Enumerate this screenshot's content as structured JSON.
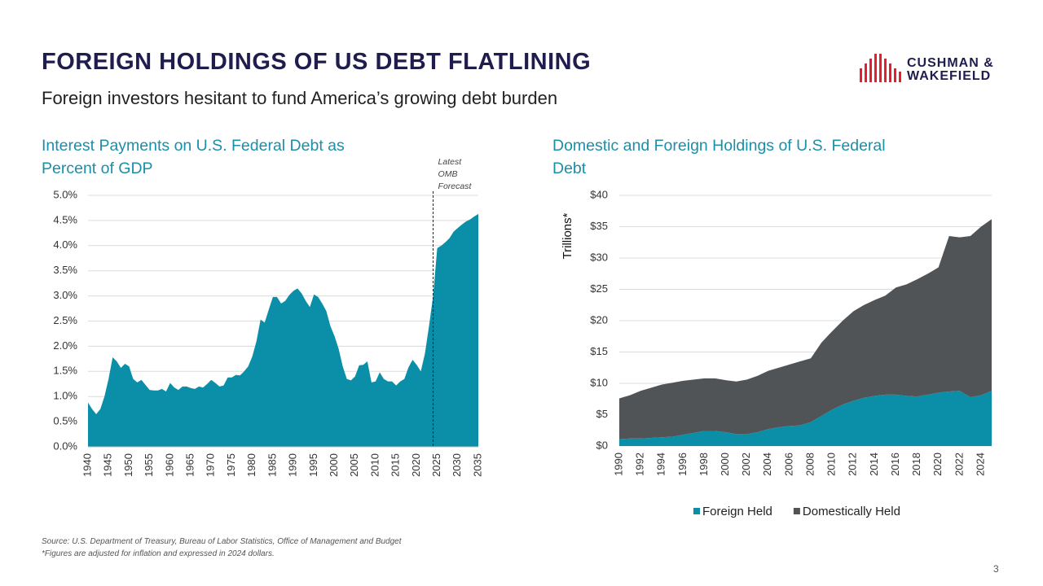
{
  "header": {
    "title": "FOREIGN HOLDINGS OF US DEBT FLATLINING",
    "subtitle": "Foreign investors hesitant to fund America’s growing debt burden",
    "logo": [
      "CUSHMAN &",
      "WAKEFIELD"
    ]
  },
  "footer": {
    "source": "Source: U.S. Department of Treasury, Bureau of Labor Statistics, Office of Management and Budget",
    "note": "*Figures are adjusted for inflation and expressed in 2024 dollars.",
    "page": "3"
  },
  "chart_data": [
    {
      "type": "area",
      "title": "Interest Payments on U.S. Federal Debt as Percent of GDP",
      "x": [
        1940,
        1941,
        1942,
        1943,
        1944,
        1945,
        1946,
        1947,
        1948,
        1949,
        1950,
        1951,
        1952,
        1953,
        1954,
        1955,
        1956,
        1957,
        1958,
        1959,
        1960,
        1961,
        1962,
        1963,
        1964,
        1965,
        1966,
        1967,
        1968,
        1969,
        1970,
        1971,
        1972,
        1973,
        1974,
        1975,
        1976,
        1977,
        1978,
        1979,
        1980,
        1981,
        1982,
        1983,
        1984,
        1985,
        1986,
        1987,
        1988,
        1989,
        1990,
        1991,
        1992,
        1993,
        1994,
        1995,
        1996,
        1997,
        1998,
        1999,
        2000,
        2001,
        2002,
        2003,
        2004,
        2005,
        2006,
        2007,
        2008,
        2009,
        2010,
        2011,
        2012,
        2013,
        2014,
        2015,
        2016,
        2017,
        2018,
        2019,
        2020,
        2021,
        2022,
        2023,
        2024,
        2025,
        2026,
        2027,
        2028,
        2029,
        2030,
        2031,
        2032,
        2033,
        2034,
        2035
      ],
      "values": [
        0.88,
        0.75,
        0.65,
        0.75,
        1.0,
        1.35,
        1.78,
        1.7,
        1.57,
        1.65,
        1.6,
        1.35,
        1.28,
        1.33,
        1.23,
        1.13,
        1.12,
        1.12,
        1.15,
        1.1,
        1.27,
        1.18,
        1.13,
        1.2,
        1.2,
        1.17,
        1.15,
        1.2,
        1.18,
        1.25,
        1.33,
        1.27,
        1.2,
        1.22,
        1.38,
        1.38,
        1.43,
        1.42,
        1.5,
        1.6,
        1.8,
        2.1,
        2.53,
        2.47,
        2.73,
        2.98,
        2.98,
        2.85,
        2.9,
        3.02,
        3.1,
        3.15,
        3.05,
        2.9,
        2.78,
        3.03,
        2.98,
        2.85,
        2.7,
        2.4,
        2.2,
        1.95,
        1.6,
        1.35,
        1.32,
        1.4,
        1.62,
        1.63,
        1.7,
        1.28,
        1.3,
        1.48,
        1.35,
        1.3,
        1.3,
        1.22,
        1.3,
        1.35,
        1.58,
        1.73,
        1.63,
        1.5,
        1.85,
        2.4,
        3.0,
        3.95,
        4.0,
        4.07,
        4.15,
        4.28,
        4.35,
        4.42,
        4.48,
        4.52,
        4.58,
        4.63
      ],
      "color": "#0b8fa8",
      "xlim": [
        1940,
        2035
      ],
      "xticks": [
        1940,
        1945,
        1950,
        1955,
        1960,
        1965,
        1970,
        1975,
        1980,
        1985,
        1990,
        1995,
        2000,
        2005,
        2010,
        2015,
        2020,
        2025,
        2030,
        2035
      ],
      "ylim": [
        0,
        5
      ],
      "yticks": [
        {
          "value": 0,
          "label": "0.0%"
        },
        {
          "value": 0.5,
          "label": "0.5%"
        },
        {
          "value": 1,
          "label": "1.0%"
        },
        {
          "value": 1.5,
          "label": "1.5%"
        },
        {
          "value": 2,
          "label": "2.0%"
        },
        {
          "value": 2.5,
          "label": "2.5%"
        },
        {
          "value": 3,
          "label": "3.0%"
        },
        {
          "value": 3.5,
          "label": "3.5%"
        },
        {
          "value": 4,
          "label": "4.0%"
        },
        {
          "value": 4.5,
          "label": "4.5%"
        },
        {
          "value": 5,
          "label": "5.0%"
        }
      ],
      "grid": true,
      "annotation": {
        "text": "Latest OMB Forecast",
        "x": 2024
      }
    },
    {
      "type": "area",
      "stacked": true,
      "title": "Domestic and Foreign Holdings of U.S. Federal Debt",
      "y_label": "Trillions*",
      "x": [
        1990,
        1991,
        1992,
        1993,
        1994,
        1995,
        1996,
        1997,
        1998,
        1999,
        2000,
        2001,
        2002,
        2003,
        2004,
        2005,
        2006,
        2007,
        2008,
        2009,
        2010,
        2011,
        2012,
        2013,
        2014,
        2015,
        2016,
        2017,
        2018,
        2019,
        2020,
        2021,
        2022,
        2023,
        2024,
        2025
      ],
      "series": [
        {
          "name": "Foreign Held",
          "color": "#0b8fa8",
          "values": [
            1.1,
            1.2,
            1.2,
            1.3,
            1.4,
            1.5,
            1.8,
            2.1,
            2.4,
            2.4,
            2.2,
            1.9,
            1.9,
            2.2,
            2.7,
            3.0,
            3.2,
            3.3,
            3.8,
            4.8,
            5.8,
            6.6,
            7.2,
            7.7,
            8.0,
            8.2,
            8.2,
            8.0,
            7.9,
            8.2,
            8.5,
            8.7,
            8.8,
            7.8,
            8.1,
            8.8
          ]
        },
        {
          "name": "Domestically Held",
          "color": "#505457",
          "values": [
            6.5,
            6.9,
            7.6,
            8.0,
            8.4,
            8.6,
            8.6,
            8.5,
            8.4,
            8.4,
            8.3,
            8.4,
            8.7,
            9.0,
            9.3,
            9.5,
            9.8,
            10.2,
            10.2,
            11.7,
            12.5,
            13.4,
            14.3,
            14.8,
            15.3,
            15.8,
            17.1,
            17.8,
            18.7,
            19.3,
            20.0,
            24.8,
            24.5,
            25.7,
            26.9,
            27.4
          ]
        }
      ],
      "xlim": [
        1990,
        2025
      ],
      "xticks": [
        1990,
        1992,
        1994,
        1996,
        1998,
        2000,
        2002,
        2004,
        2006,
        2008,
        2010,
        2012,
        2014,
        2016,
        2018,
        2020,
        2022,
        2024
      ],
      "ylim": [
        0,
        40
      ],
      "yticks": [
        {
          "value": 0,
          "label": "$0"
        },
        {
          "value": 5,
          "label": "$5"
        },
        {
          "value": 10,
          "label": "$10"
        },
        {
          "value": 15,
          "label": "$15"
        },
        {
          "value": 20,
          "label": "$20"
        },
        {
          "value": 25,
          "label": "$25"
        },
        {
          "value": 30,
          "label": "$30"
        },
        {
          "value": 35,
          "label": "$35"
        },
        {
          "value": 40,
          "label": "$40"
        }
      ],
      "grid": true,
      "legend": "bottom"
    }
  ]
}
